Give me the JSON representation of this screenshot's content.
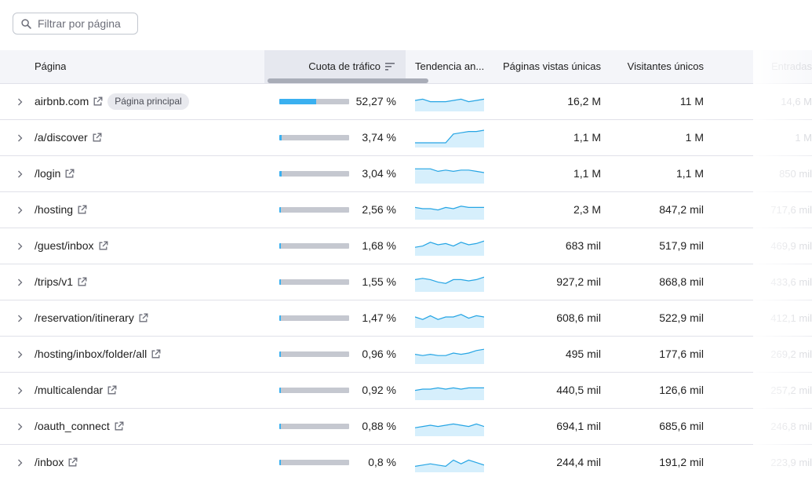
{
  "search": {
    "placeholder": "Filtrar por página",
    "icon": "search-icon"
  },
  "columns": {
    "page": "Página",
    "share": "Cuota de tráfico",
    "trend": "Tendencia an...",
    "views": "Páginas vistas únicas",
    "visitors": "Visitantes únicos",
    "entries": "Entradas"
  },
  "colors": {
    "bar_fill": "#3ab0f0",
    "bar_track": "#c5c8d0",
    "spark_line": "#26a5e4",
    "spark_area": "#d6effc"
  },
  "rows": [
    {
      "page": "airbnb.com",
      "badge": "Página principal",
      "share_pct": 52.27,
      "share": "52,27 %",
      "views": "16,2 M",
      "visitors": "11 M",
      "entries": "14,6 M",
      "trend": [
        5,
        6,
        4,
        4,
        4,
        5,
        6,
        4,
        5,
        6
      ]
    },
    {
      "page": "/a/discover",
      "badge": "",
      "share_pct": 3.74,
      "share": "3,74 %",
      "views": "1,1 M",
      "visitors": "1 M",
      "entries": "1 M",
      "trend": [
        0,
        0,
        0,
        0,
        0,
        7,
        8,
        9,
        9,
        10
      ]
    },
    {
      "page": "/login",
      "badge": "",
      "share_pct": 3.04,
      "share": "3,04 %",
      "views": "1,1 M",
      "visitors": "1,1 M",
      "entries": "850 mil",
      "trend": [
        8,
        8,
        8,
        6,
        7,
        6,
        7,
        7,
        6,
        5
      ]
    },
    {
      "page": "/hosting",
      "badge": "",
      "share_pct": 2.56,
      "share": "2,56 %",
      "views": "2,3 M",
      "visitors": "847,2 mil",
      "entries": "717,6 mil",
      "trend": [
        6,
        5,
        5,
        4,
        6,
        5,
        7,
        6,
        6,
        6
      ]
    },
    {
      "page": "/guest/inbox",
      "badge": "",
      "share_pct": 1.68,
      "share": "1,68 %",
      "views": "683 mil",
      "visitors": "517,9 mil",
      "entries": "469,9 mil",
      "trend": [
        3,
        4,
        7,
        5,
        6,
        4,
        7,
        5,
        6,
        8
      ]
    },
    {
      "page": "/trips/v1",
      "badge": "",
      "share_pct": 1.55,
      "share": "1,55 %",
      "views": "927,2 mil",
      "visitors": "868,8 mil",
      "entries": "433,6 mil",
      "trend": [
        6,
        7,
        6,
        4,
        3,
        6,
        6,
        5,
        6,
        8
      ]
    },
    {
      "page": "/reservation/itinerary",
      "badge": "",
      "share_pct": 1.47,
      "share": "1,47 %",
      "views": "608,6 mil",
      "visitors": "522,9 mil",
      "entries": "412,1 mil",
      "trend": [
        5,
        3,
        6,
        3,
        5,
        5,
        7,
        4,
        6,
        5
      ]
    },
    {
      "page": "/hosting/inbox/folder/all",
      "badge": "",
      "share_pct": 0.96,
      "share": "0,96 %",
      "views": "495 mil",
      "visitors": "177,6 mil",
      "entries": "269,2 mil",
      "trend": [
        4,
        3,
        4,
        3,
        3,
        5,
        4,
        5,
        7,
        8
      ]
    },
    {
      "page": "/multicalendar",
      "badge": "",
      "share_pct": 0.92,
      "share": "0,92 %",
      "views": "440,5 mil",
      "visitors": "126,6 mil",
      "entries": "257,2 mil",
      "trend": [
        4,
        5,
        5,
        6,
        5,
        6,
        5,
        6,
        6,
        6
      ]
    },
    {
      "page": "/oauth_connect",
      "badge": "",
      "share_pct": 0.88,
      "share": "0,88 %",
      "views": "694,1 mil",
      "visitors": "685,6 mil",
      "entries": "246,8 mil",
      "trend": [
        3,
        4,
        5,
        4,
        5,
        6,
        5,
        4,
        6,
        4
      ]
    },
    {
      "page": "/inbox",
      "badge": "",
      "share_pct": 0.8,
      "share": "0,8 %",
      "views": "244,4 mil",
      "visitors": "191,2 mil",
      "entries": "223,9 mil",
      "trend": [
        1,
        2,
        3,
        2,
        1,
        6,
        3,
        6,
        4,
        2
      ]
    }
  ]
}
